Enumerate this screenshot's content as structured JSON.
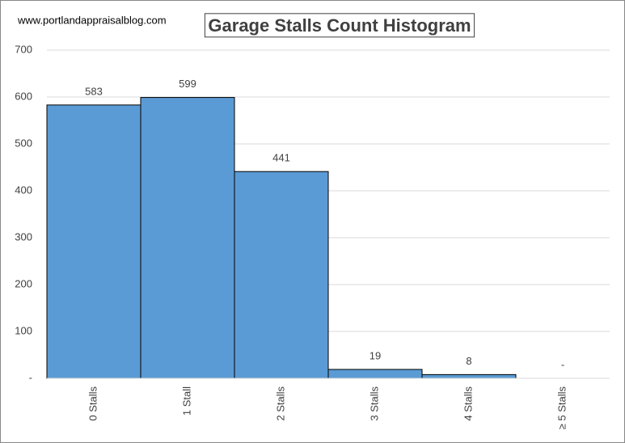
{
  "chart_data": {
    "type": "histogram",
    "title": "Garage Stalls Count Histogram",
    "annotation": "www.portlandappraisalblog.com",
    "categories": [
      "0 Stalls",
      "1 Stall",
      "2 Stalls",
      "3 Stalls",
      "4 Stalls",
      "≥ 5 Stalls"
    ],
    "values": [
      583,
      599,
      441,
      19,
      8,
      0
    ],
    "value_labels": [
      "583",
      "599",
      "441",
      "19",
      "8",
      "-"
    ],
    "color": "#5b9bd5",
    "ylim": [
      0,
      700
    ],
    "yticks": [
      {
        "value": 0,
        "label": "-"
      },
      100,
      200,
      300,
      400,
      500,
      600,
      700
    ],
    "grid": true
  }
}
